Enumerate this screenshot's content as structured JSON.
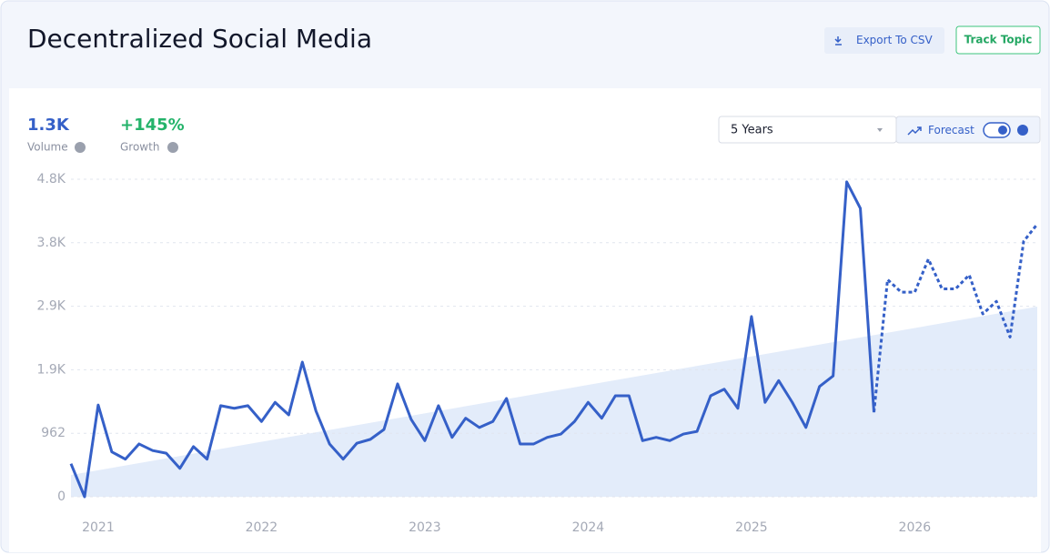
{
  "header": {
    "title": "Decentralized Social Media",
    "buttons": [
      "Export To CSV",
      "Track Topic"
    ]
  },
  "stats": [
    {
      "value": "1.3K"
    },
    {
      "value": "+145%",
      "label": "Growth"
    }
  ],
  "controls": {
    "range": "5 Years"
  },
  "chart_data": {
    "type": "line",
    "categories": [
      null,
      null,
      "2021",
      null,
      null,
      null,
      null,
      null,
      null,
      null,
      null,
      null,
      null,
      null,
      "2022",
      null,
      null,
      null,
      null,
      null,
      null,
      null,
      null,
      null,
      null,
      null,
      "2023",
      null,
      null,
      null,
      null,
      null,
      null,
      null,
      null,
      null,
      null,
      null,
      "2024",
      null,
      null,
      null,
      null,
      null,
      null,
      null,
      null,
      null,
      null,
      null,
      "2025",
      null,
      null,
      null,
      null,
      null,
      null,
      null,
      null,
      null,
      null,
      null,
      "2026",
      null,
      null,
      null,
      null,
      null,
      null,
      null,
      null,
      null
    ],
    "series": [
      {
        "name": "Volume",
        "color": "#3560c8",
        "values": [
          500,
          0,
          1390,
          680,
          570,
          800,
          700,
          660,
          430,
          760,
          570,
          1380,
          1340,
          1380,
          1140,
          1430,
          1240,
          2040,
          1300,
          800,
          570,
          810,
          870,
          1020,
          1710,
          1170,
          850,
          1380,
          900,
          1190,
          1050,
          1140,
          1490,
          800,
          800,
          900,
          950,
          1140,
          1430,
          1190,
          1530,
          1530,
          850,
          900,
          850,
          950,
          990,
          1530,
          1630,
          1340,
          2730,
          1430,
          1760,
          1430,
          1050,
          1670,
          1830,
          4770,
          4370,
          1280,
          null,
          null,
          null,
          null,
          null,
          null,
          null,
          null,
          null,
          null,
          null,
          null
        ]
      },
      {
        "name": "Forecast",
        "color": "#3560c8",
        "values": [
          null,
          null,
          null,
          null,
          null,
          null,
          null,
          null,
          null,
          null,
          null,
          null,
          null,
          null,
          null,
          null,
          null,
          null,
          null,
          null,
          null,
          null,
          null,
          null,
          null,
          null,
          null,
          null,
          null,
          null,
          null,
          null,
          null,
          null,
          null,
          null,
          null,
          null,
          null,
          null,
          null,
          null,
          null,
          null,
          null,
          null,
          null,
          null,
          null,
          null,
          null,
          null,
          null,
          null,
          null,
          null,
          null,
          null,
          null,
          1280,
          3290,
          3100,
          3100,
          3600,
          3150,
          3150,
          3360,
          2770,
          2960,
          2420,
          3870,
          4130
        ]
      }
    ],
    "trend": [
      330,
      2880
    ],
    "trend_color": "#e3ecfa",
    "ylim": [
      0,
      4810
    ],
    "yticks": [
      0,
      962,
      {
        "value": 1924,
        "label": "1.9K"
      },
      {
        "value": 2886,
        "label": "2.9K"
      },
      {
        "value": 3848,
        "label": "3.8K"
      },
      {
        "value": 4810,
        "label": "4.8K"
      }
    ],
    "grid": true
  }
}
